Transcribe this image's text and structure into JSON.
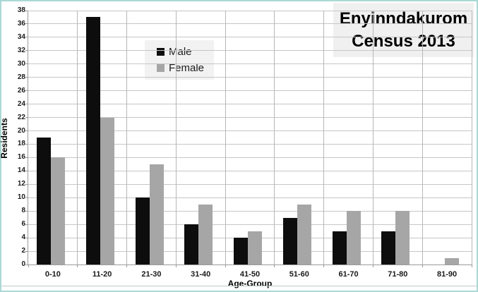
{
  "title": {
    "text": "Enyinndakurom Census 2013",
    "lines": [
      "Enyinndakurom",
      "Census 2013"
    ],
    "background": "#f0f0f0"
  },
  "legend": {
    "background": "#f2f2f2",
    "items": [
      {
        "label": "Male",
        "color": "#0d0d0d"
      },
      {
        "label": "Female",
        "color": "#a6a6a6"
      }
    ]
  },
  "chart_data": {
    "type": "bar",
    "title": "Enyinndakurom Census 2013",
    "categories": [
      "0-10",
      "11-20",
      "21-30",
      "31-40",
      "41-50",
      "51-60",
      "61-70",
      "71-80",
      "81-90"
    ],
    "series": [
      {
        "name": "Male",
        "color": "#0d0d0d",
        "values": [
          19,
          37,
          10,
          6,
          4,
          7,
          5,
          5,
          0
        ]
      },
      {
        "name": "Female",
        "color": "#a6a6a6",
        "values": [
          16,
          22,
          15,
          9,
          5,
          9,
          8,
          8,
          1
        ]
      }
    ],
    "xlabel": "Age-Group",
    "ylabel": "Residents",
    "ylim": [
      0,
      38
    ],
    "ytick_step": 2,
    "grid": true,
    "legend_position": "inside top-center-left",
    "colors": {
      "gridline": "#c6c6c6",
      "axis": "#9a9a9a",
      "frame_border": "#abd9d5",
      "tick_label": "#1a1a1a"
    }
  }
}
